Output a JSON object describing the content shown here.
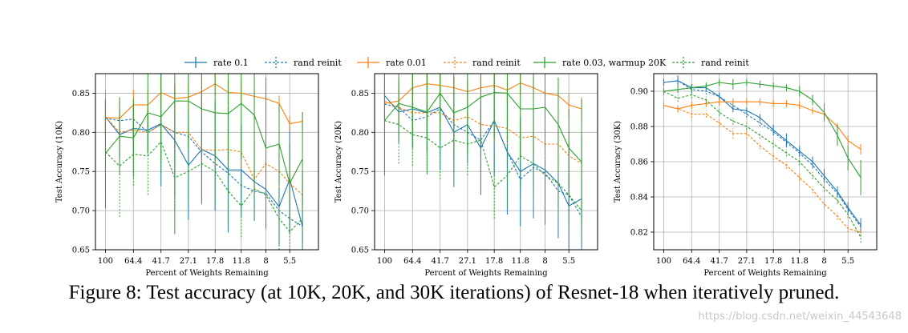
{
  "caption": "Figure 8: Test accuracy (at 10K, 20K, and 30K iterations) of Resnet-18 when iteratively pruned.",
  "watermark": "https://blog.csdn.net/weixin_44543648",
  "legend": {
    "placement": "top-center",
    "entries": [
      {
        "label": "rate 0.1",
        "color": "#1f77b4",
        "dashed": false
      },
      {
        "label": "rand reinit",
        "color": "#1f77b4",
        "dashed": true
      },
      {
        "label": "rate 0.01",
        "color": "#ff7f0e",
        "dashed": false
      },
      {
        "label": "rand reinit",
        "color": "#ff7f0e",
        "dashed": true
      },
      {
        "label": "rate 0.03, warmup 20K",
        "color": "#2ca02c",
        "dashed": false
      },
      {
        "label": "rand reinit",
        "color": "#2ca02c",
        "dashed": true
      }
    ]
  },
  "chart_data": [
    {
      "type": "line",
      "xlabel": "Percent of Weights Remaining",
      "ylabel": "Test Accuracy (10K)",
      "xscale": "log-reversed",
      "xlim": [
        117,
        3.5
      ],
      "ylim": [
        0.65,
        0.875
      ],
      "xticks": [
        100,
        64.4,
        41.7,
        27.1,
        17.8,
        11.8,
        8.0,
        5.5
      ],
      "yticks": [
        0.65,
        0.7,
        0.75,
        0.8,
        0.85
      ],
      "grid": true,
      "x": [
        100,
        80,
        64.4,
        51.3,
        41.7,
        33.6,
        27.1,
        22.0,
        17.8,
        14.5,
        11.8,
        9.6,
        8.0,
        6.5,
        5.5,
        4.5
      ],
      "series": [
        {
          "name": "rate 0.1",
          "color": "#1f77b4",
          "dashed": false,
          "values": [
            0.82,
            0.797,
            0.805,
            0.803,
            0.811,
            0.79,
            0.758,
            0.778,
            0.77,
            0.752,
            0.752,
            0.737,
            0.727,
            0.705,
            0.74,
            0.68
          ],
          "errors": [
            0.02,
            0.03,
            0.03,
            0.03,
            0.08,
            0.07,
            0.07,
            0.07,
            0.07,
            0.08,
            0.06,
            0.05,
            0.05,
            0.05,
            0.07,
            0.07
          ]
        },
        {
          "name": "rand reinit",
          "color": "#1f77b4",
          "dashed": true,
          "values": [
            0.818,
            0.815,
            0.817,
            0.8,
            0.81,
            0.8,
            0.795,
            0.775,
            0.76,
            0.748,
            0.732,
            0.725,
            0.722,
            0.7,
            0.69,
            0.68
          ],
          "errors": [
            0.02,
            0.02,
            0.02,
            0.03,
            0.02,
            0.02,
            0.02,
            0.02,
            0.02,
            0.02,
            0.02,
            0.02,
            0.02,
            0.02,
            0.02,
            0.02
          ]
        },
        {
          "name": "rate 0.01",
          "color": "#ff7f0e",
          "dashed": false,
          "values": [
            0.819,
            0.818,
            0.835,
            0.835,
            0.851,
            0.843,
            0.845,
            0.852,
            0.862,
            0.851,
            0.85,
            0.846,
            0.843,
            0.837,
            0.811,
            0.814
          ],
          "errors": [
            0.035,
            0.025,
            0.02,
            0.02,
            0.02,
            0.02,
            0.02,
            0.02,
            0.015,
            0.015,
            0.015,
            0.015,
            0.01,
            0.01,
            0.01,
            0.012
          ]
        },
        {
          "name": "rand reinit",
          "color": "#ff7f0e",
          "dashed": true,
          "values": [
            0.82,
            0.8,
            0.803,
            0.8,
            0.81,
            0.8,
            0.8,
            0.778,
            0.777,
            0.778,
            0.775,
            0.74,
            0.76,
            0.75,
            0.735,
            0.72
          ],
          "errors": [
            0.02,
            0.02,
            0.02,
            0.02,
            0.02,
            0.02,
            0.02,
            0.02,
            0.02,
            0.02,
            0.02,
            0.02,
            0.02,
            0.02,
            0.02,
            0.02
          ]
        },
        {
          "name": "rate 0.03, warmup 20K",
          "color": "#2ca02c",
          "dashed": false,
          "values": [
            0.773,
            0.795,
            0.793,
            0.825,
            0.82,
            0.84,
            0.84,
            0.83,
            0.825,
            0.824,
            0.837,
            0.822,
            0.78,
            0.785,
            0.735,
            0.766
          ],
          "errors": [
            0.07,
            0.05,
            0.05,
            0.05,
            0.06,
            0.17,
            0.06,
            0.06,
            0.06,
            0.06,
            0.07,
            0.09,
            0.09,
            0.05,
            0.05,
            0.06
          ]
        },
        {
          "name": "rand reinit",
          "color": "#2ca02c",
          "dashed": true,
          "values": [
            0.775,
            0.757,
            0.772,
            0.77,
            0.788,
            0.742,
            0.75,
            0.76,
            0.75,
            0.725,
            0.706,
            0.728,
            0.72,
            0.69,
            0.673,
            0.69
          ],
          "errors": [
            0.05,
            0.065,
            0.04,
            0.05,
            0.04,
            0.04,
            0.04,
            0.04,
            0.04,
            0.04,
            0.04,
            0.04,
            0.04,
            0.04,
            0.04,
            0.04
          ]
        }
      ]
    },
    {
      "type": "line",
      "xlabel": "Percent of Weights Remaining",
      "ylabel": "Test Accuracy (20K)",
      "xscale": "log-reversed",
      "xlim": [
        117,
        3.5
      ],
      "ylim": [
        0.65,
        0.875
      ],
      "xticks": [
        100,
        64.4,
        41.7,
        27.1,
        17.8,
        11.8,
        8.0,
        5.5
      ],
      "yticks": [
        0.65,
        0.7,
        0.75,
        0.8,
        0.85
      ],
      "grid": true,
      "x": [
        100,
        80,
        64.4,
        51.3,
        41.7,
        33.6,
        27.1,
        22.0,
        17.8,
        14.5,
        11.8,
        9.6,
        8.0,
        6.5,
        5.5,
        4.5
      ],
      "series": [
        {
          "name": "rate 0.1",
          "color": "#1f77b4",
          "dashed": false,
          "values": [
            0.847,
            0.826,
            0.83,
            0.825,
            0.832,
            0.8,
            0.81,
            0.78,
            0.815,
            0.775,
            0.75,
            0.76,
            0.752,
            0.735,
            0.706,
            0.715
          ],
          "errors": [
            0.03,
            0.04,
            0.05,
            0.05,
            0.08,
            0.07,
            0.05,
            0.06,
            0.07,
            0.08,
            0.07,
            0.07,
            0.07,
            0.07,
            0.08,
            0.08
          ]
        },
        {
          "name": "rand reinit",
          "color": "#1f77b4",
          "dashed": true,
          "values": [
            0.836,
            0.832,
            0.815,
            0.82,
            0.83,
            0.81,
            0.8,
            0.79,
            0.815,
            0.775,
            0.74,
            0.755,
            0.748,
            0.725,
            0.72,
            0.692
          ],
          "errors": [
            0.02,
            0.02,
            0.02,
            0.02,
            0.02,
            0.02,
            0.02,
            0.02,
            0.02,
            0.02,
            0.02,
            0.02,
            0.02,
            0.02,
            0.02,
            0.02
          ]
        },
        {
          "name": "rate 0.01",
          "color": "#ff7f0e",
          "dashed": false,
          "values": [
            0.837,
            0.84,
            0.857,
            0.862,
            0.86,
            0.857,
            0.852,
            0.857,
            0.86,
            0.854,
            0.863,
            0.857,
            0.85,
            0.847,
            0.835,
            0.83
          ],
          "errors": [
            0.02,
            0.03,
            0.015,
            0.015,
            0.015,
            0.015,
            0.015,
            0.015,
            0.015,
            0.015,
            0.015,
            0.015,
            0.015,
            0.015,
            0.015,
            0.015
          ]
        },
        {
          "name": "rand reinit",
          "color": "#ff7f0e",
          "dashed": true,
          "values": [
            0.84,
            0.832,
            0.825,
            0.825,
            0.825,
            0.815,
            0.82,
            0.81,
            0.808,
            0.805,
            0.793,
            0.795,
            0.785,
            0.785,
            0.77,
            0.76
          ],
          "errors": [
            0.02,
            0.02,
            0.02,
            0.02,
            0.02,
            0.02,
            0.02,
            0.02,
            0.02,
            0.02,
            0.02,
            0.02,
            0.02,
            0.02,
            0.02,
            0.02
          ]
        },
        {
          "name": "rate 0.03, warmup 20K",
          "color": "#2ca02c",
          "dashed": false,
          "values": [
            0.815,
            0.837,
            0.832,
            0.826,
            0.85,
            0.825,
            0.832,
            0.845,
            0.851,
            0.85,
            0.83,
            0.83,
            0.832,
            0.81,
            0.78,
            0.762
          ],
          "errors": [
            0.07,
            0.045,
            0.05,
            0.08,
            0.06,
            0.06,
            0.06,
            0.06,
            0.06,
            0.06,
            0.06,
            0.06,
            0.06,
            0.06,
            0.05,
            0.08
          ]
        },
        {
          "name": "rand reinit",
          "color": "#2ca02c",
          "dashed": true,
          "values": [
            0.815,
            0.81,
            0.797,
            0.793,
            0.78,
            0.79,
            0.785,
            0.79,
            0.73,
            0.745,
            0.77,
            0.76,
            0.745,
            0.735,
            0.72,
            0.7
          ],
          "errors": [
            0.05,
            0.05,
            0.04,
            0.04,
            0.04,
            0.04,
            0.04,
            0.04,
            0.04,
            0.04,
            0.04,
            0.04,
            0.04,
            0.04,
            0.04,
            0.04
          ]
        }
      ]
    },
    {
      "type": "line",
      "xlabel": "Percent of Weights Remaining",
      "ylabel": "Test Accuracy (30K)",
      "xscale": "log-reversed",
      "xlim": [
        117,
        3.5
      ],
      "ylim": [
        0.81,
        0.91
      ],
      "xticks": [
        100,
        64.4,
        41.7,
        27.1,
        17.8,
        11.8,
        8.0,
        5.5
      ],
      "yticks": [
        0.82,
        0.84,
        0.86,
        0.88,
        0.9
      ],
      "grid": true,
      "x": [
        100,
        80,
        64.4,
        51.3,
        41.7,
        33.6,
        27.1,
        22.0,
        17.8,
        14.5,
        11.8,
        9.6,
        8.0,
        6.5,
        5.5,
        4.5
      ],
      "series": [
        {
          "name": "rate 0.1",
          "color": "#1f77b4",
          "dashed": false,
          "values": [
            0.905,
            0.906,
            0.902,
            0.902,
            0.897,
            0.89,
            0.889,
            0.885,
            0.878,
            0.872,
            0.866,
            0.86,
            0.852,
            0.843,
            0.834,
            0.824
          ],
          "errors": [
            0.002,
            0.003,
            0.002,
            0.002,
            0.002,
            0.002,
            0.002,
            0.002,
            0.003,
            0.004,
            0.003,
            0.003,
            0.004,
            0.003,
            0.003,
            0.004
          ]
        },
        {
          "name": "rand reinit",
          "color": "#1f77b4",
          "dashed": true,
          "values": [
            0.905,
            0.906,
            0.901,
            0.9,
            0.897,
            0.892,
            0.887,
            0.882,
            0.877,
            0.871,
            0.865,
            0.858,
            0.85,
            0.842,
            0.833,
            0.823
          ],
          "errors": [
            0.002,
            0.002,
            0.002,
            0.002,
            0.002,
            0.002,
            0.002,
            0.002,
            0.002,
            0.002,
            0.002,
            0.002,
            0.002,
            0.002,
            0.002,
            0.002
          ]
        },
        {
          "name": "rate 0.01",
          "color": "#ff7f0e",
          "dashed": false,
          "values": [
            0.892,
            0.89,
            0.892,
            0.893,
            0.894,
            0.894,
            0.894,
            0.894,
            0.893,
            0.893,
            0.892,
            0.889,
            0.887,
            0.88,
            0.872,
            0.867
          ],
          "errors": [
            0.002,
            0.002,
            0.002,
            0.002,
            0.002,
            0.002,
            0.002,
            0.002,
            0.002,
            0.002,
            0.002,
            0.002,
            0.002,
            0.002,
            0.003,
            0.003
          ]
        },
        {
          "name": "rand reinit",
          "color": "#ff7f0e",
          "dashed": true,
          "values": [
            0.892,
            0.89,
            0.887,
            0.887,
            0.882,
            0.876,
            0.876,
            0.869,
            0.863,
            0.858,
            0.851,
            0.844,
            0.836,
            0.829,
            0.822,
            0.82
          ],
          "errors": [
            0.002,
            0.002,
            0.002,
            0.002,
            0.002,
            0.003,
            0.003,
            0.002,
            0.002,
            0.002,
            0.002,
            0.002,
            0.002,
            0.002,
            0.002,
            0.002
          ]
        },
        {
          "name": "rate 0.03, warmup 20K",
          "color": "#2ca02c",
          "dashed": false,
          "values": [
            0.9,
            0.901,
            0.902,
            0.903,
            0.905,
            0.904,
            0.905,
            0.904,
            0.903,
            0.902,
            0.9,
            0.895,
            0.888,
            0.875,
            0.862,
            0.851
          ],
          "errors": [
            0.002,
            0.002,
            0.002,
            0.002,
            0.002,
            0.003,
            0.002,
            0.002,
            0.002,
            0.002,
            0.003,
            0.003,
            0.005,
            0.006,
            0.007,
            0.01
          ]
        },
        {
          "name": "rand reinit",
          "color": "#2ca02c",
          "dashed": true,
          "values": [
            0.9,
            0.896,
            0.898,
            0.895,
            0.888,
            0.883,
            0.88,
            0.875,
            0.87,
            0.865,
            0.86,
            0.852,
            0.845,
            0.838,
            0.83,
            0.817
          ],
          "errors": [
            0.002,
            0.002,
            0.002,
            0.002,
            0.002,
            0.002,
            0.002,
            0.002,
            0.002,
            0.002,
            0.002,
            0.002,
            0.002,
            0.002,
            0.002,
            0.003
          ]
        }
      ]
    }
  ]
}
